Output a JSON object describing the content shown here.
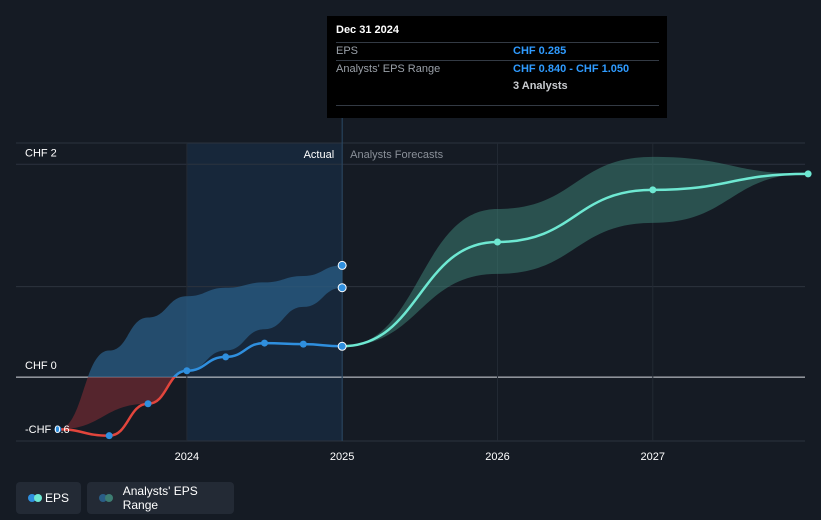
{
  "chart_data": {
    "type": "line",
    "y_ticks": [
      {
        "value": 2,
        "label": "CHF 2"
      },
      {
        "value": 0,
        "label": "CHF 0"
      },
      {
        "value": -0.6,
        "label": "-CHF 0.6"
      }
    ],
    "x_ticks": [
      {
        "value": 2024.0,
        "label": "2024"
      },
      {
        "value": 2025.0,
        "label": "2025"
      },
      {
        "value": 2026.0,
        "label": "2026"
      },
      {
        "value": 2027.0,
        "label": "2027"
      }
    ],
    "xlim": [
      2022.9,
      2027.98
    ],
    "ylim": [
      -0.6,
      2.2
    ],
    "divider_x": 2025.0,
    "regions": {
      "actual": "Actual",
      "forecast": "Analysts Forecasts"
    },
    "series": [
      {
        "name": "EPS",
        "color": "#2f8fde",
        "negative_color": "#e2453c",
        "points": [
          {
            "x": 2023.17,
            "y": -0.49
          },
          {
            "x": 2023.5,
            "y": -0.55
          },
          {
            "x": 2023.75,
            "y": -0.25
          },
          {
            "x": 2024.0,
            "y": 0.06
          },
          {
            "x": 2024.25,
            "y": 0.19
          },
          {
            "x": 2024.5,
            "y": 0.32
          },
          {
            "x": 2024.75,
            "y": 0.31
          },
          {
            "x": 2025.0,
            "y": 0.29
          }
        ]
      },
      {
        "name": "EPS Forecast",
        "color": "#6ee8d2",
        "points": [
          {
            "x": 2025.0,
            "y": 0.29
          },
          {
            "x": 2026.0,
            "y": 1.27
          },
          {
            "x": 2027.0,
            "y": 1.76
          },
          {
            "x": 2028.0,
            "y": 1.91
          }
        ]
      }
    ],
    "actual_range": {
      "name": "Analysts' EPS Range",
      "upper": [
        {
          "x": 2023.17,
          "y": -0.49
        },
        {
          "x": 2023.5,
          "y": 0.25
        },
        {
          "x": 2023.75,
          "y": 0.56
        },
        {
          "x": 2024.0,
          "y": 0.76
        },
        {
          "x": 2024.25,
          "y": 0.84
        },
        {
          "x": 2024.5,
          "y": 0.89
        },
        {
          "x": 2024.75,
          "y": 0.95
        },
        {
          "x": 2025.0,
          "y": 1.05
        }
      ],
      "lower": [
        {
          "x": 2023.17,
          "y": -0.49
        },
        {
          "x": 2023.75,
          "y": -0.25
        },
        {
          "x": 2024.0,
          "y": 0.06
        },
        {
          "x": 2024.25,
          "y": 0.25
        },
        {
          "x": 2024.5,
          "y": 0.45
        },
        {
          "x": 2024.75,
          "y": 0.66
        },
        {
          "x": 2025.0,
          "y": 0.84
        }
      ],
      "end_markers": [
        1.05,
        0.84
      ]
    },
    "forecast_range": {
      "name": "Analysts' EPS Range",
      "upper": [
        {
          "x": 2025.0,
          "y": 0.29
        },
        {
          "x": 2026.0,
          "y": 1.58
        },
        {
          "x": 2027.0,
          "y": 2.07
        },
        {
          "x": 2028.0,
          "y": 1.91
        }
      ],
      "lower": [
        {
          "x": 2025.0,
          "y": 0.29
        },
        {
          "x": 2026.0,
          "y": 0.97
        },
        {
          "x": 2027.0,
          "y": 1.45
        },
        {
          "x": 2028.0,
          "y": 1.91
        }
      ]
    }
  },
  "tooltip": {
    "date": "Dec 31 2024",
    "rows": [
      {
        "label": "EPS",
        "value": "CHF 0.285"
      },
      {
        "label": "Analysts' EPS Range",
        "value": "CHF 0.840 - CHF 1.050"
      },
      {
        "label": "",
        "value": "3 Analysts"
      }
    ]
  },
  "legend": {
    "items": [
      {
        "label": "EPS",
        "dot1": "#2f8fde",
        "dot2": "#6ee8d2"
      },
      {
        "label": "Analysts' EPS Range",
        "dot1": "#2a5d86",
        "dot2": "#3d7d72"
      }
    ]
  }
}
